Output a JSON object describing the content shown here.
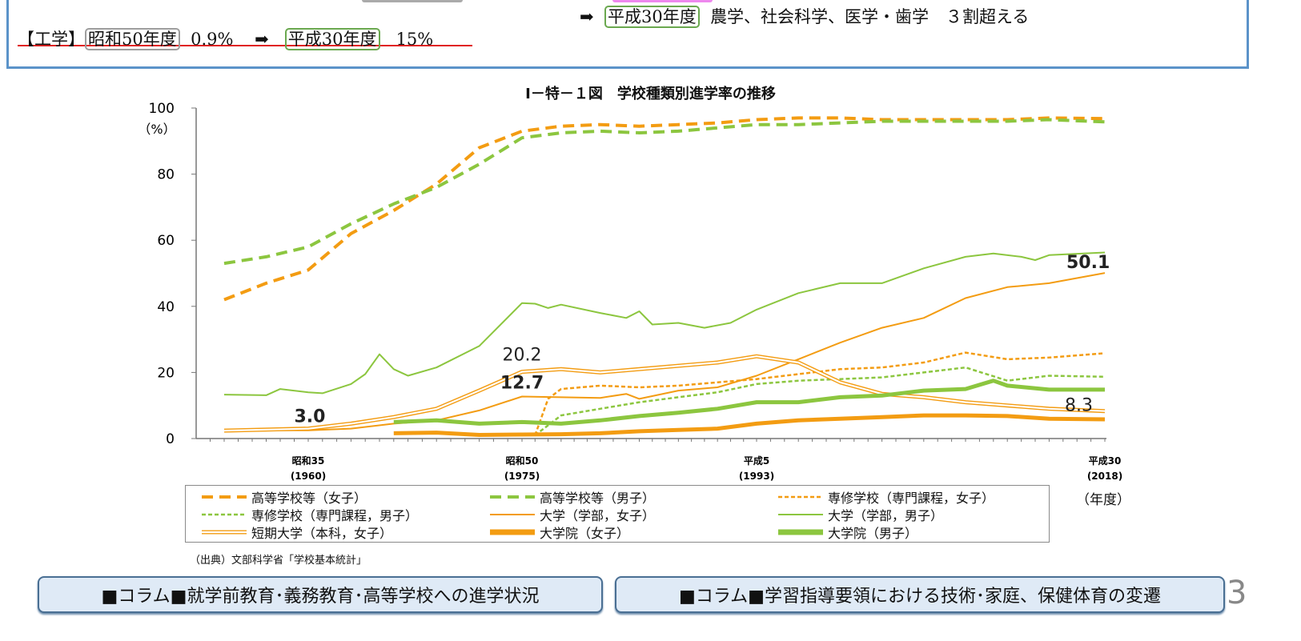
{
  "header": {
    "line1_arrow": "➡",
    "line1_tag": "平成30年度",
    "line1_text": "農学、社会科学、医学・歯学　３割超える",
    "line2_label": "【工学】",
    "line2_tag1": "昭和50年度",
    "line2_val1": "0.9%",
    "line2_arrow": "➡",
    "line2_tag2": "平成30年度",
    "line2_val2": "15%"
  },
  "chart_data": {
    "type": "line",
    "title": "Ⅰ－特－１図　学校種類別進学率の推移",
    "ylabel": "（%）",
    "xlabel": "（年度）",
    "ylim": [
      0,
      100
    ],
    "yticks": [
      "0",
      "20",
      "40",
      "60",
      "80",
      "100"
    ],
    "xticks": [
      {
        "year": 1960,
        "label1": "昭和35",
        "label2": "(1960)"
      },
      {
        "year": 1975,
        "label1": "昭和50",
        "label2": "(1975)"
      },
      {
        "year": 1993,
        "label1": "平成5",
        "label2": "(1993)"
      },
      {
        "year": 2018,
        "label1": "平成30",
        "label2": "(2018)"
      }
    ],
    "grid": false,
    "legend_position": "bottom",
    "series": [
      {
        "name": "高等学校等（女子）",
        "color": "#f39c12",
        "style": "dash-long",
        "x": [
          1954,
          1957,
          1960,
          1963,
          1966,
          1969,
          1972,
          1975,
          1978,
          1981,
          1984,
          1987,
          1990,
          1993,
          1996,
          1999,
          2002,
          2005,
          2008,
          2011,
          2014,
          2018
        ],
        "y": [
          42,
          47,
          51,
          62,
          69,
          77,
          88,
          93,
          94.5,
          95,
          94.5,
          95,
          95.5,
          96.5,
          97,
          97,
          96.5,
          96.5,
          96.5,
          96.5,
          97,
          96.8
        ]
      },
      {
        "name": "高等学校等（男子）",
        "color": "#8cc63f",
        "style": "dash-long",
        "x": [
          1954,
          1957,
          1960,
          1963,
          1966,
          1969,
          1972,
          1975,
          1978,
          1981,
          1984,
          1987,
          1990,
          1993,
          1996,
          1999,
          2002,
          2005,
          2008,
          2011,
          2014,
          2018
        ],
        "y": [
          53,
          55,
          58,
          65,
          71,
          76,
          83,
          91,
          92.5,
          93,
          92.5,
          93,
          94,
          95,
          95,
          95.5,
          96,
          96,
          96,
          96,
          96.5,
          95.8
        ]
      },
      {
        "name": "専修学校（専門課程，女子）",
        "color": "#f39c12",
        "style": "dash-short",
        "x": [
          1976,
          1977,
          1978,
          1981,
          1984,
          1987,
          1990,
          1993,
          1996,
          1999,
          2002,
          2005,
          2008,
          2011,
          2014,
          2018
        ],
        "y": [
          1,
          12,
          15,
          16,
          15.5,
          16,
          17,
          18,
          19.5,
          21,
          21.5,
          23,
          26,
          24,
          24.5,
          25.8
        ]
      },
      {
        "name": "専修学校（専門課程，男子）",
        "color": "#8cc63f",
        "style": "dash-short",
        "x": [
          1976,
          1978,
          1981,
          1984,
          1987,
          1990,
          1993,
          1996,
          1999,
          2002,
          2005,
          2008,
          2011,
          2014,
          2018
        ],
        "y": [
          1,
          7,
          9,
          11,
          12.5,
          14,
          16.5,
          17.5,
          18,
          18.5,
          20,
          21.5,
          17.5,
          19,
          18.7
        ]
      },
      {
        "name": "大学（学部，女子）",
        "color": "#f39c12",
        "style": "thin",
        "x": [
          1954,
          1957,
          1960,
          1963,
          1966,
          1969,
          1972,
          1975,
          1978,
          1981,
          1983,
          1984,
          1987,
          1990,
          1993,
          1996,
          1999,
          2002,
          2005,
          2008,
          2011,
          2014,
          2018
        ],
        "y": [
          2.4,
          2.5,
          2.5,
          3,
          4.5,
          5.5,
          8.5,
          12.7,
          12.5,
          12.3,
          13.5,
          12,
          14.5,
          15.5,
          19,
          24,
          29,
          33.5,
          36.5,
          42.5,
          45.8,
          47,
          50.1
        ]
      },
      {
        "name": "大学（学部，男子）",
        "color": "#8cc63f",
        "style": "thin",
        "x": [
          1954,
          1957,
          1958,
          1960,
          1961,
          1963,
          1964,
          1965,
          1966,
          1967,
          1969,
          1972,
          1975,
          1976,
          1977,
          1978,
          1981,
          1983,
          1984,
          1985,
          1987,
          1989,
          1991,
          1993,
          1996,
          1999,
          2002,
          2005,
          2008,
          2010,
          2012,
          2013,
          2014,
          2018
        ],
        "y": [
          13.3,
          13.1,
          15,
          14,
          13.7,
          16.5,
          19.5,
          25.5,
          21,
          19,
          21.5,
          28,
          41,
          40.8,
          39.5,
          40.5,
          38,
          36.5,
          38.5,
          34.5,
          35,
          33.5,
          35,
          39,
          44,
          47,
          47,
          51.5,
          55,
          56,
          55,
          54,
          55.5,
          56.3
        ]
      },
      {
        "name": "短期大学（本科，女子）",
        "color": "#f39c12",
        "style": "double",
        "x": [
          1954,
          1960,
          1963,
          1966,
          1969,
          1972,
          1975,
          1978,
          1981,
          1984,
          1987,
          1990,
          1993,
          1996,
          1999,
          2002,
          2005,
          2008,
          2011,
          2014,
          2018
        ],
        "y": [
          2.4,
          3,
          4.5,
          6.5,
          9,
          14.5,
          20.2,
          21,
          20,
          21,
          22,
          23,
          24.9,
          23,
          17,
          13.5,
          12.5,
          11,
          10,
          9,
          8.3
        ]
      },
      {
        "name": "大学院（女子）",
        "color": "#f39c12",
        "style": "thick",
        "x": [
          1966,
          1969,
          1972,
          1975,
          1978,
          1981,
          1984,
          1987,
          1990,
          1993,
          1996,
          1999,
          2002,
          2005,
          2008,
          2011,
          2014,
          2018
        ],
        "y": [
          1.6,
          1.8,
          1.1,
          1.2,
          1.3,
          1.6,
          2.2,
          2.6,
          3,
          4.5,
          5.5,
          6,
          6.5,
          7,
          7,
          6.8,
          6,
          5.8
        ]
      },
      {
        "name": "大学院（男子）",
        "color": "#8cc63f",
        "style": "thick",
        "x": [
          1966,
          1969,
          1972,
          1975,
          1978,
          1981,
          1984,
          1987,
          1990,
          1993,
          1996,
          1999,
          2002,
          2005,
          2008,
          2010,
          2011,
          2014,
          2018
        ],
        "y": [
          5,
          5.5,
          4.5,
          5,
          4.5,
          5.5,
          6.8,
          7.8,
          9,
          11,
          11,
          12.5,
          13,
          14.5,
          15,
          17.5,
          16,
          14.8,
          14.8
        ]
      }
    ],
    "annotations": [
      {
        "text": "50.1",
        "year": 2018,
        "value": 50.1,
        "bold": true
      },
      {
        "text": "20.2",
        "year": 1975,
        "value": 20.2,
        "bold": false
      },
      {
        "text": "12.7",
        "year": 1975,
        "value": 12.7,
        "bold": true
      },
      {
        "text": "3.0",
        "year": 1960,
        "value": 3.0,
        "bold": true
      },
      {
        "text": "8.3",
        "year": 2018,
        "value": 8.3,
        "bold": false
      }
    ]
  },
  "source": "（出典）文部科学省「学校基本統計」",
  "nav": {
    "button1": "■コラム■就学前教育･義務教育･高等学校への進学状況",
    "button2": "■コラム■学習指導要領における技術･家庭、保健体育の変遷"
  },
  "page_number": "3"
}
